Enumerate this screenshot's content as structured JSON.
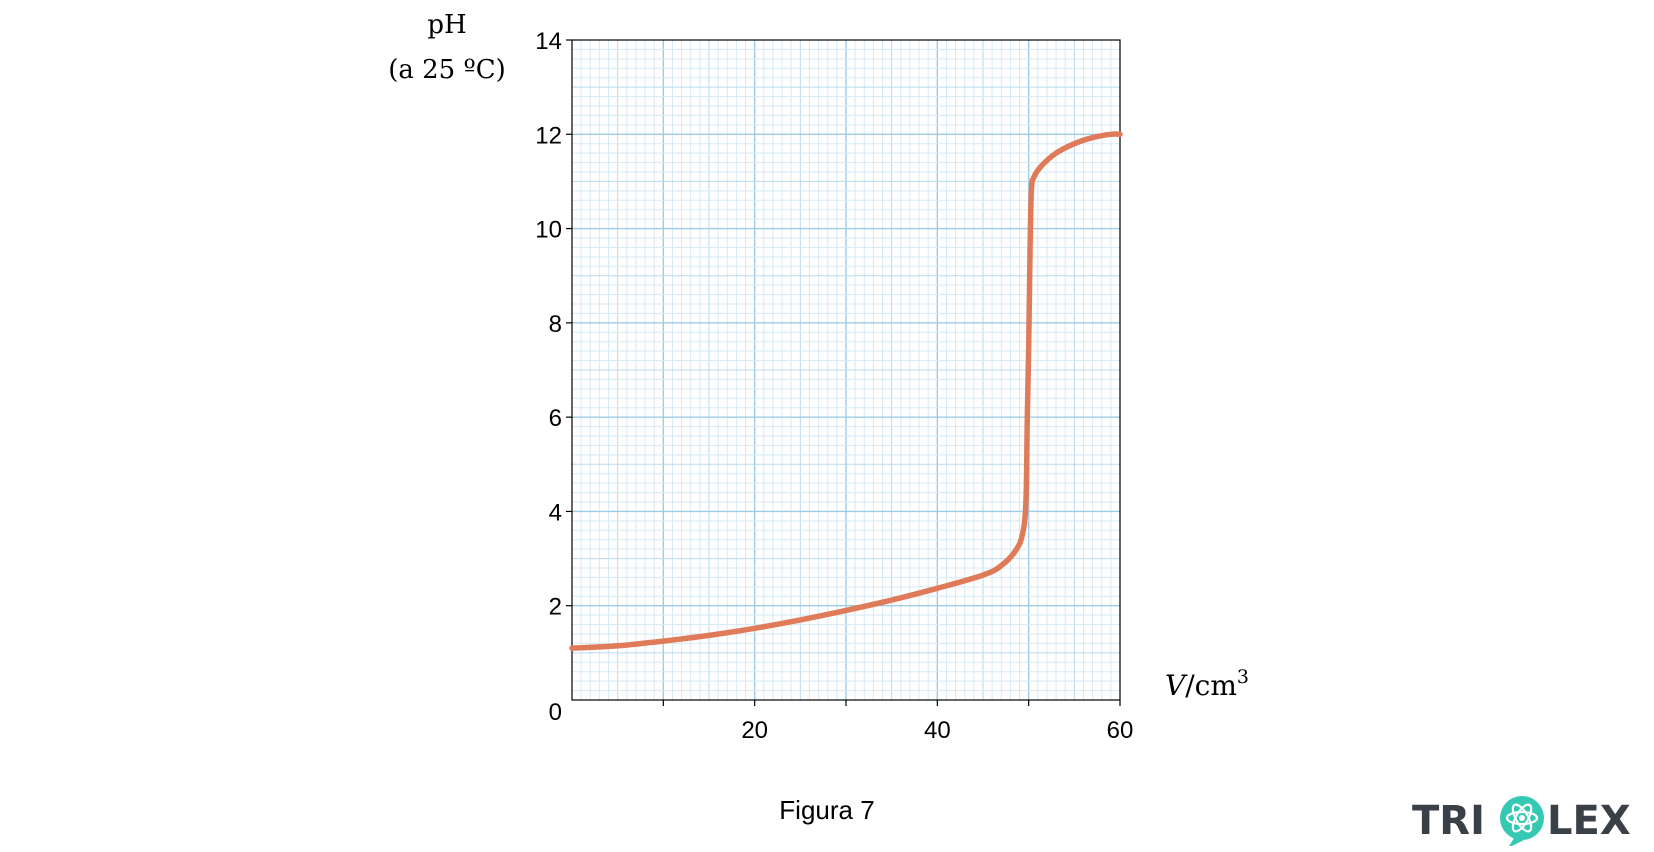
{
  "chart_data": {
    "type": "line",
    "xlabel_var": "V",
    "xlabel_unit": "/cm",
    "xlabel_exp": "3",
    "ylabel_line1": "pH",
    "ylabel_line2": "(a 25 ºC)",
    "xlim": [
      0,
      60
    ],
    "ylim": [
      0,
      14
    ],
    "x_ticks": [
      20,
      40,
      60
    ],
    "x_minor_ticks": [
      10,
      30,
      50
    ],
    "y_ticks": [
      2,
      4,
      6,
      8,
      10,
      12,
      14
    ],
    "origin_label": "0",
    "grid": true,
    "series": [
      {
        "color": "#e07b5a",
        "x": [
          0,
          5,
          10,
          15,
          20,
          25,
          30,
          35,
          40,
          45,
          47,
          48.5,
          49.3,
          49.7,
          49.85,
          50,
          50.15,
          50.3,
          50.6,
          51.5,
          53,
          55,
          57,
          59,
          60
        ],
        "y": [
          1.1,
          1.15,
          1.25,
          1.37,
          1.52,
          1.7,
          1.9,
          2.12,
          2.37,
          2.65,
          2.85,
          3.15,
          3.5,
          4.2,
          6.0,
          7.5,
          9.5,
          10.8,
          11.1,
          11.35,
          11.6,
          11.8,
          11.93,
          12.0,
          12.0
        ]
      }
    ]
  },
  "caption": "Figura 7",
  "logo": {
    "text_left": "TRI",
    "text_right": "LEX",
    "icon": "atom-icon",
    "color": "#3a4048",
    "accent": "#35c9b4"
  }
}
